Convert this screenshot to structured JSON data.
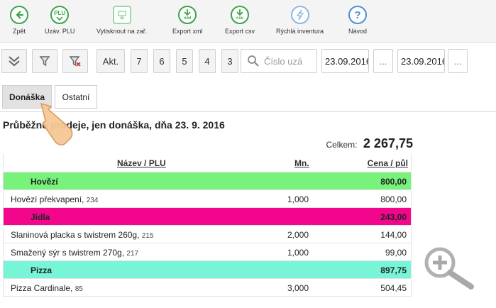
{
  "toolbar": {
    "items": [
      {
        "id": "back",
        "label": "Zpět",
        "icon": "arrow-left-icon"
      },
      {
        "id": "close-plu",
        "label": "Uzáv. PLU",
        "icon": "plu-icon",
        "icon_text": "PLU"
      },
      {
        "id": "print",
        "label": "Vytisknout na zař.",
        "icon": "print-icon"
      },
      {
        "id": "export-xml",
        "label": "Export xml",
        "icon": "download-xml-icon",
        "icon_text": "xml"
      },
      {
        "id": "export-csv",
        "label": "Export csv",
        "icon": "download-csv-icon",
        "icon_text": "csv"
      },
      {
        "id": "quick-inventory",
        "label": "Rýchlá inventura",
        "icon": "lightning-icon"
      },
      {
        "id": "help",
        "label": "Návod",
        "icon": "question-icon"
      }
    ]
  },
  "filters": {
    "akt_label": "Akt.",
    "days": [
      "7",
      "6",
      "5",
      "4",
      "3"
    ],
    "search_placeholder": "Číslo uzá",
    "date_from": "23.09.2016",
    "date_to": "23.09.2016",
    "more_label": "..."
  },
  "tabs": [
    {
      "label": "Donáška",
      "active": true
    },
    {
      "label": "Ostatní",
      "active": false
    }
  ],
  "report": {
    "title": "Průběžné prodeje, jen donáška, dňa 23. 9. 2016",
    "total_label": "Celkem:",
    "total_value": "2 267,75",
    "columns": {
      "name": "Název",
      "slash": " / ",
      "plu": "PLU",
      "qty": "Mn.",
      "price": "Cena / půl"
    },
    "rows": [
      {
        "type": "category",
        "name": "Hovězí",
        "price": "800,00",
        "color": "#77f27a"
      },
      {
        "type": "item",
        "name": "Hovězí překvapení, ",
        "plu": "234",
        "qty": "1,000",
        "price": "800,00"
      },
      {
        "type": "category",
        "name": "Jídla",
        "price": "243,00",
        "color": "#f1068c"
      },
      {
        "type": "item",
        "name": "Slaninová placka s twistrem 260g, ",
        "plu": "215",
        "qty": "2,000",
        "price": "144,00"
      },
      {
        "type": "item",
        "name": "Smažený sýr s twistrem 270g, ",
        "plu": "217",
        "qty": "1,000",
        "price": "99,00"
      },
      {
        "type": "category",
        "name": "Pizza",
        "price": "897,75",
        "color": "#78f4d6"
      },
      {
        "type": "item",
        "name": "Pizza Cardinale, ",
        "plu": "85",
        "qty": "3,000",
        "price": "504,45"
      }
    ]
  }
}
